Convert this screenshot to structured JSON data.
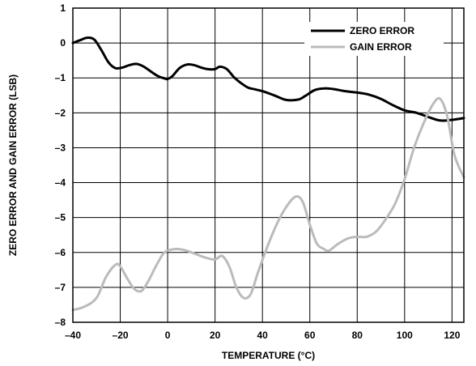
{
  "chart_data": {
    "type": "line",
    "xlabel": "TEMPERATURE (°C)",
    "ylabel": "ZERO ERROR AND GAIN ERROR (LSB)",
    "xlim": [
      -40,
      125
    ],
    "ylim": [
      -8,
      1
    ],
    "xticks": [
      -40,
      -20,
      0,
      20,
      40,
      60,
      80,
      100,
      120
    ],
    "yticks": [
      1,
      0,
      -1,
      -2,
      -3,
      -4,
      -5,
      -6,
      -7,
      -8
    ],
    "xtick_labels": [
      "–40",
      "–20",
      "0",
      "20",
      "40",
      "60",
      "80",
      "100",
      "120"
    ],
    "ytick_labels": [
      "1",
      "0",
      "–1",
      "–2",
      "–3",
      "–4",
      "–5",
      "–6",
      "–7",
      "–8"
    ],
    "grid": true,
    "legend_position": "top-right",
    "series": [
      {
        "name": "ZERO ERROR",
        "color": "#000000",
        "x": [
          -40,
          -37,
          -34,
          -31,
          -28,
          -25,
          -22,
          -19,
          -16,
          -13,
          -10,
          -7,
          -4,
          -1,
          0,
          2,
          5,
          8,
          11,
          14,
          17,
          20,
          22,
          25,
          28,
          31,
          34,
          37,
          40,
          45,
          50,
          55,
          58,
          62,
          66,
          70,
          75,
          80,
          85,
          90,
          95,
          100,
          105,
          110,
          115,
          120,
          125
        ],
        "y": [
          0.0,
          0.08,
          0.15,
          0.1,
          -0.2,
          -0.55,
          -0.72,
          -0.7,
          -0.63,
          -0.6,
          -0.68,
          -0.82,
          -0.95,
          -1.02,
          -1.03,
          -0.95,
          -0.72,
          -0.62,
          -0.63,
          -0.7,
          -0.75,
          -0.75,
          -0.68,
          -0.75,
          -0.98,
          -1.15,
          -1.28,
          -1.33,
          -1.38,
          -1.5,
          -1.63,
          -1.62,
          -1.52,
          -1.35,
          -1.3,
          -1.32,
          -1.38,
          -1.42,
          -1.48,
          -1.6,
          -1.78,
          -1.93,
          -2.0,
          -2.12,
          -2.22,
          -2.2,
          -2.15
        ]
      },
      {
        "name": "GAIN ERROR",
        "color": "#bbbbbb",
        "x": [
          -40,
          -35,
          -30,
          -26,
          -22,
          -20,
          -17,
          -14,
          -11,
          -8,
          -5,
          -2,
          0,
          4,
          8,
          12,
          16,
          20,
          23,
          26,
          29,
          32,
          35,
          38,
          42,
          46,
          50,
          54,
          57,
          60,
          63,
          66,
          68,
          72,
          76,
          80,
          84,
          88,
          92,
          96,
          100,
          104,
          108,
          112,
          115,
          118,
          121,
          125
        ],
        "y": [
          -7.65,
          -7.55,
          -7.3,
          -6.7,
          -6.35,
          -6.4,
          -6.75,
          -7.05,
          -7.1,
          -6.8,
          -6.4,
          -6.05,
          -5.95,
          -5.9,
          -5.95,
          -6.05,
          -6.15,
          -6.2,
          -6.1,
          -6.4,
          -7.0,
          -7.3,
          -7.2,
          -6.6,
          -5.85,
          -5.2,
          -4.7,
          -4.4,
          -4.55,
          -5.2,
          -5.75,
          -5.9,
          -5.95,
          -5.75,
          -5.6,
          -5.55,
          -5.55,
          -5.4,
          -5.05,
          -4.6,
          -3.9,
          -3.0,
          -2.3,
          -1.75,
          -1.6,
          -2.1,
          -3.2,
          -3.85
        ]
      }
    ]
  }
}
